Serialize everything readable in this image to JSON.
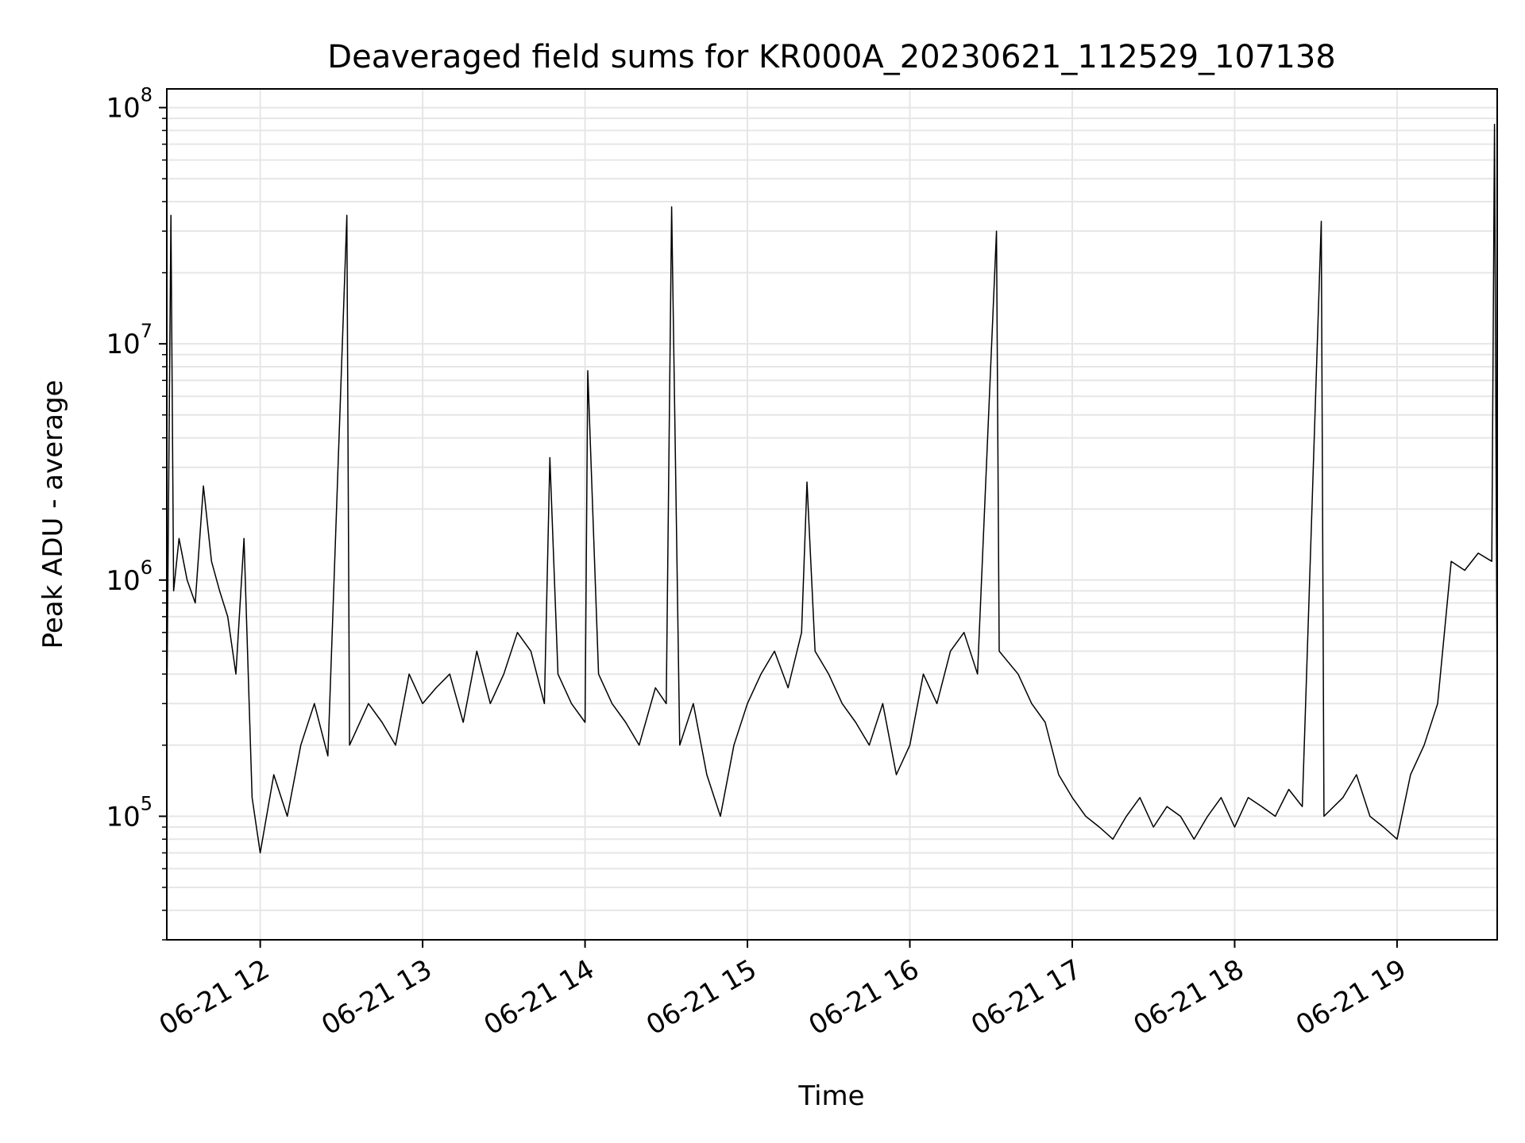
{
  "chart_data": {
    "type": "line",
    "title": "Deaveraged field sums for KR000A_20230621_112529_107138",
    "xlabel": "Time",
    "ylabel": "Peak ADU - average",
    "yscale": "log",
    "ylim": [
      30000,
      120000000
    ],
    "xlim": [
      "2023-06-21T11:25:29",
      "2023-06-21T19:37:00"
    ],
    "grid": true,
    "x_ticks": [
      {
        "label": "06-21 12",
        "time": "2023-06-21T12:00"
      },
      {
        "label": "06-21 13",
        "time": "2023-06-21T13:00"
      },
      {
        "label": "06-21 14",
        "time": "2023-06-21T14:00"
      },
      {
        "label": "06-21 15",
        "time": "2023-06-21T15:00"
      },
      {
        "label": "06-21 16",
        "time": "2023-06-21T16:00"
      },
      {
        "label": "06-21 17",
        "time": "2023-06-21T17:00"
      },
      {
        "label": "06-21 18",
        "time": "2023-06-21T18:00"
      },
      {
        "label": "06-21 19",
        "time": "2023-06-21T19:00"
      }
    ],
    "y_ticks": [
      {
        "base": "10",
        "exp": "5",
        "value": 100000
      },
      {
        "base": "10",
        "exp": "6",
        "value": 1000000
      },
      {
        "base": "10",
        "exp": "7",
        "value": 10000000
      },
      {
        "base": "10",
        "exp": "8",
        "value": 100000000
      }
    ],
    "series": [
      {
        "color": "#000000",
        "x": [
          "2023-06-21T11:25:30",
          "2023-06-21T11:27:00",
          "2023-06-21T11:28:00",
          "2023-06-21T11:30:00",
          "2023-06-21T11:33:00",
          "2023-06-21T11:36:00",
          "2023-06-21T11:39:00",
          "2023-06-21T11:42:00",
          "2023-06-21T11:45:00",
          "2023-06-21T11:48:00",
          "2023-06-21T11:51:00",
          "2023-06-21T11:54:00",
          "2023-06-21T11:57:00",
          "2023-06-21T12:00:00",
          "2023-06-21T12:05:00",
          "2023-06-21T12:10:00",
          "2023-06-21T12:15:00",
          "2023-06-21T12:20:00",
          "2023-06-21T12:25:00",
          "2023-06-21T12:32:00",
          "2023-06-21T12:33:00",
          "2023-06-21T12:40:00",
          "2023-06-21T12:45:00",
          "2023-06-21T12:50:00",
          "2023-06-21T12:55:00",
          "2023-06-21T13:00:00",
          "2023-06-21T13:05:00",
          "2023-06-21T13:10:00",
          "2023-06-21T13:15:00",
          "2023-06-21T13:20:00",
          "2023-06-21T13:25:00",
          "2023-06-21T13:30:00",
          "2023-06-21T13:35:00",
          "2023-06-21T13:40:00",
          "2023-06-21T13:45:00",
          "2023-06-21T13:47:00",
          "2023-06-21T13:50:00",
          "2023-06-21T13:55:00",
          "2023-06-21T14:00:00",
          "2023-06-21T14:01:00",
          "2023-06-21T14:05:00",
          "2023-06-21T14:10:00",
          "2023-06-21T14:15:00",
          "2023-06-21T14:20:00",
          "2023-06-21T14:26:00",
          "2023-06-21T14:30:00",
          "2023-06-21T14:32:00",
          "2023-06-21T14:35:00",
          "2023-06-21T14:40:00",
          "2023-06-21T14:45:00",
          "2023-06-21T14:50:00",
          "2023-06-21T14:55:00",
          "2023-06-21T15:00:00",
          "2023-06-21T15:05:00",
          "2023-06-21T15:10:00",
          "2023-06-21T15:15:00",
          "2023-06-21T15:20:00",
          "2023-06-21T15:22:00",
          "2023-06-21T15:25:00",
          "2023-06-21T15:30:00",
          "2023-06-21T15:35:00",
          "2023-06-21T15:40:00",
          "2023-06-21T15:45:00",
          "2023-06-21T15:50:00",
          "2023-06-21T15:55:00",
          "2023-06-21T16:00:00",
          "2023-06-21T16:05:00",
          "2023-06-21T16:10:00",
          "2023-06-21T16:15:00",
          "2023-06-21T16:20:00",
          "2023-06-21T16:25:00",
          "2023-06-21T16:32:00",
          "2023-06-21T16:33:00",
          "2023-06-21T16:40:00",
          "2023-06-21T16:45:00",
          "2023-06-21T16:50:00",
          "2023-06-21T16:55:00",
          "2023-06-21T17:00:00",
          "2023-06-21T17:05:00",
          "2023-06-21T17:10:00",
          "2023-06-21T17:15:00",
          "2023-06-21T17:20:00",
          "2023-06-21T17:25:00",
          "2023-06-21T17:30:00",
          "2023-06-21T17:35:00",
          "2023-06-21T17:40:00",
          "2023-06-21T17:45:00",
          "2023-06-21T17:50:00",
          "2023-06-21T17:55:00",
          "2023-06-21T18:00:00",
          "2023-06-21T18:05:00",
          "2023-06-21T18:10:00",
          "2023-06-21T18:15:00",
          "2023-06-21T18:20:00",
          "2023-06-21T18:25:00",
          "2023-06-21T18:32:00",
          "2023-06-21T18:33:00",
          "2023-06-21T18:40:00",
          "2023-06-21T18:45:00",
          "2023-06-21T18:50:00",
          "2023-06-21T18:55:00",
          "2023-06-21T19:00:00",
          "2023-06-21T19:05:00",
          "2023-06-21T19:10:00",
          "2023-06-21T19:15:00",
          "2023-06-21T19:20:00",
          "2023-06-21T19:25:00",
          "2023-06-21T19:30:00",
          "2023-06-21T19:35:00",
          "2023-06-21T19:36:00",
          "2023-06-21T19:37:00"
        ],
        "y": [
          300000,
          35000000,
          900000,
          1500000,
          1000000,
          800000,
          2500000,
          1200000,
          900000,
          700000,
          400000,
          1500000,
          120000,
          70000,
          150000,
          100000,
          200000,
          300000,
          180000,
          35000000,
          200000,
          300000,
          250000,
          200000,
          400000,
          300000,
          350000,
          400000,
          250000,
          500000,
          300000,
          400000,
          600000,
          500000,
          300000,
          3300000,
          400000,
          300000,
          250000,
          7700000,
          400000,
          300000,
          250000,
          200000,
          350000,
          300000,
          38000000,
          200000,
          300000,
          150000,
          100000,
          200000,
          300000,
          400000,
          500000,
          350000,
          600000,
          2600000,
          500000,
          400000,
          300000,
          250000,
          200000,
          300000,
          150000,
          200000,
          400000,
          300000,
          500000,
          600000,
          400000,
          30000000,
          500000,
          400000,
          300000,
          250000,
          150000,
          120000,
          100000,
          90000,
          80000,
          100000,
          120000,
          90000,
          110000,
          100000,
          80000,
          100000,
          120000,
          90000,
          120000,
          110000,
          100000,
          130000,
          110000,
          33000000,
          100000,
          120000,
          150000,
          100000,
          90000,
          80000,
          150000,
          200000,
          300000,
          1200000,
          1100000,
          1300000,
          1200000,
          85000000,
          300000
        ]
      }
    ]
  }
}
